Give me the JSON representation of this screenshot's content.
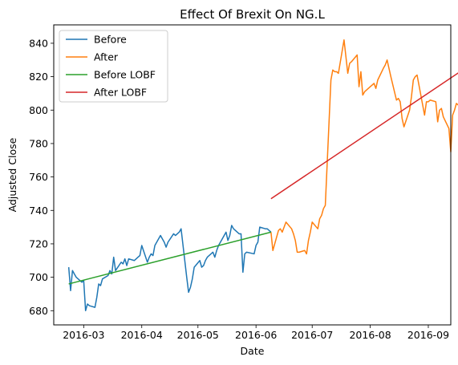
{
  "chart_data": {
    "type": "line",
    "title": "Effect Of Brexit On NG.L",
    "xlabel": "Date",
    "ylabel": "Adjusted Close",
    "x_ticks": [
      "2016-03",
      "2016-04",
      "2016-05",
      "2016-06",
      "2016-07",
      "2016-08",
      "2016-09"
    ],
    "y_ticks": [
      680,
      700,
      720,
      740,
      760,
      780,
      800,
      820,
      840
    ],
    "xlim": [
      "2016-02-14",
      "2016-09-13"
    ],
    "ylim": [
      671.5,
      851
    ],
    "grid": false,
    "legend_position": "top-left",
    "series": [
      {
        "name": "Before",
        "color": "#1f77b4",
        "points": [
          [
            "2016-02-22",
            706
          ],
          [
            "2016-02-23",
            692
          ],
          [
            "2016-02-24",
            704
          ],
          [
            "2016-02-25",
            702
          ],
          [
            "2016-02-26",
            700
          ],
          [
            "2016-02-29",
            697
          ],
          [
            "2016-03-01",
            698
          ],
          [
            "2016-03-02",
            680
          ],
          [
            "2016-03-03",
            684
          ],
          [
            "2016-03-04",
            683
          ],
          [
            "2016-03-07",
            682
          ],
          [
            "2016-03-08",
            688
          ],
          [
            "2016-03-09",
            696
          ],
          [
            "2016-03-10",
            695
          ],
          [
            "2016-03-11",
            699
          ],
          [
            "2016-03-14",
            701
          ],
          [
            "2016-03-15",
            704
          ],
          [
            "2016-03-16",
            702
          ],
          [
            "2016-03-17",
            712
          ],
          [
            "2016-03-18",
            704
          ],
          [
            "2016-03-21",
            709
          ],
          [
            "2016-03-22",
            708
          ],
          [
            "2016-03-23",
            711
          ],
          [
            "2016-03-24",
            707
          ],
          [
            "2016-03-25",
            711
          ],
          [
            "2016-03-28",
            710
          ],
          [
            "2016-03-29",
            711
          ],
          [
            "2016-03-30",
            712
          ],
          [
            "2016-03-31",
            713
          ],
          [
            "2016-04-01",
            719
          ],
          [
            "2016-04-04",
            709
          ],
          [
            "2016-04-05",
            712
          ],
          [
            "2016-04-06",
            714
          ],
          [
            "2016-04-07",
            713
          ],
          [
            "2016-04-08",
            719
          ],
          [
            "2016-04-11",
            725
          ],
          [
            "2016-04-12",
            723
          ],
          [
            "2016-04-13",
            721
          ],
          [
            "2016-04-14",
            718
          ],
          [
            "2016-04-15",
            721
          ],
          [
            "2016-04-18",
            726
          ],
          [
            "2016-04-19",
            725
          ],
          [
            "2016-04-20",
            726
          ],
          [
            "2016-04-21",
            727
          ],
          [
            "2016-04-22",
            729
          ],
          [
            "2016-04-25",
            700
          ],
          [
            "2016-04-26",
            691
          ],
          [
            "2016-04-27",
            694
          ],
          [
            "2016-04-28",
            699
          ],
          [
            "2016-04-29",
            706
          ],
          [
            "2016-05-02",
            710
          ],
          [
            "2016-05-03",
            706
          ],
          [
            "2016-05-04",
            707
          ],
          [
            "2016-05-05",
            710
          ],
          [
            "2016-05-06",
            712
          ],
          [
            "2016-05-09",
            715
          ],
          [
            "2016-05-10",
            712
          ],
          [
            "2016-05-11",
            716
          ],
          [
            "2016-05-12",
            719
          ],
          [
            "2016-05-13",
            721
          ],
          [
            "2016-05-16",
            727
          ],
          [
            "2016-05-17",
            722
          ],
          [
            "2016-05-18",
            725
          ],
          [
            "2016-05-19",
            731
          ],
          [
            "2016-05-20",
            729
          ],
          [
            "2016-05-23",
            726
          ],
          [
            "2016-05-24",
            726
          ],
          [
            "2016-05-25",
            703
          ],
          [
            "2016-05-26",
            714
          ],
          [
            "2016-05-27",
            715
          ],
          [
            "2016-05-31",
            714
          ],
          [
            "2016-06-01",
            719
          ],
          [
            "2016-06-02",
            721
          ],
          [
            "2016-06-03",
            730
          ],
          [
            "2016-06-06",
            729
          ],
          [
            "2016-06-07",
            729
          ],
          [
            "2016-06-08",
            728
          ],
          [
            "2016-06-09",
            727
          ]
        ]
      },
      {
        "name": "After",
        "color": "#ff7f0e",
        "points": [
          [
            "2016-06-09",
            727
          ],
          [
            "2016-06-10",
            716
          ],
          [
            "2016-06-13",
            728
          ],
          [
            "2016-06-14",
            729
          ],
          [
            "2016-06-15",
            727
          ],
          [
            "2016-06-16",
            730
          ],
          [
            "2016-06-17",
            733
          ],
          [
            "2016-06-20",
            729
          ],
          [
            "2016-06-21",
            726
          ],
          [
            "2016-06-22",
            722
          ],
          [
            "2016-06-23",
            715
          ],
          [
            "2016-06-24",
            715
          ],
          [
            "2016-06-27",
            716
          ],
          [
            "2016-06-28",
            714
          ],
          [
            "2016-06-29",
            722
          ],
          [
            "2016-06-30",
            727
          ],
          [
            "2016-07-01",
            733
          ],
          [
            "2016-07-04",
            729
          ],
          [
            "2016-07-05",
            735
          ],
          [
            "2016-07-06",
            737
          ],
          [
            "2016-07-07",
            741
          ],
          [
            "2016-07-08",
            743
          ],
          [
            "2016-07-11",
            818
          ],
          [
            "2016-07-12",
            824
          ],
          [
            "2016-07-13",
            823
          ],
          [
            "2016-07-14",
            823
          ],
          [
            "2016-07-15",
            822
          ],
          [
            "2016-07-18",
            842
          ],
          [
            "2016-07-19",
            832
          ],
          [
            "2016-07-20",
            822
          ],
          [
            "2016-07-21",
            828
          ],
          [
            "2016-07-22",
            829
          ],
          [
            "2016-07-25",
            833
          ],
          [
            "2016-07-26",
            814
          ],
          [
            "2016-07-27",
            823
          ],
          [
            "2016-07-28",
            809
          ],
          [
            "2016-07-29",
            811
          ],
          [
            "2016-08-01",
            814
          ],
          [
            "2016-08-02",
            815
          ],
          [
            "2016-08-03",
            816
          ],
          [
            "2016-08-04",
            813
          ],
          [
            "2016-08-05",
            818
          ],
          [
            "2016-08-08",
            825
          ],
          [
            "2016-08-09",
            827
          ],
          [
            "2016-08-10",
            830
          ],
          [
            "2016-08-11",
            825
          ],
          [
            "2016-08-12",
            820
          ],
          [
            "2016-08-15",
            806
          ],
          [
            "2016-08-16",
            807
          ],
          [
            "2016-08-17",
            805
          ],
          [
            "2016-08-18",
            795
          ],
          [
            "2016-08-19",
            790
          ],
          [
            "2016-08-22",
            800
          ],
          [
            "2016-08-23",
            808
          ],
          [
            "2016-08-24",
            818
          ],
          [
            "2016-08-25",
            820
          ],
          [
            "2016-08-26",
            821
          ],
          [
            "2016-08-30",
            797
          ],
          [
            "2016-08-31",
            805
          ],
          [
            "2016-09-01",
            805
          ],
          [
            "2016-09-02",
            806
          ],
          [
            "2016-09-05",
            805
          ],
          [
            "2016-09-06",
            793
          ],
          [
            "2016-09-07",
            800
          ],
          [
            "2016-09-08",
            801
          ],
          [
            "2016-09-09",
            796
          ],
          [
            "2016-09-12",
            789
          ],
          [
            "2016-09-13",
            775
          ],
          [
            "2016-09-14",
            797
          ],
          [
            "2016-09-15",
            800
          ],
          [
            "2016-09-16",
            804
          ],
          [
            "2016-09-19",
            801
          ],
          [
            "2016-09-20",
            795
          ],
          [
            "2016-09-21",
            793
          ],
          [
            "2016-09-22",
            785
          ]
        ]
      },
      {
        "name": "Before LOBF",
        "color": "#2ca02c",
        "points": [
          [
            "2016-02-22",
            696
          ],
          [
            "2016-06-09",
            727
          ]
        ]
      },
      {
        "name": "After LOBF",
        "color": "#d62728",
        "points": [
          [
            "2016-06-09",
            747
          ],
          [
            "2016-09-22",
            826
          ]
        ]
      }
    ]
  }
}
